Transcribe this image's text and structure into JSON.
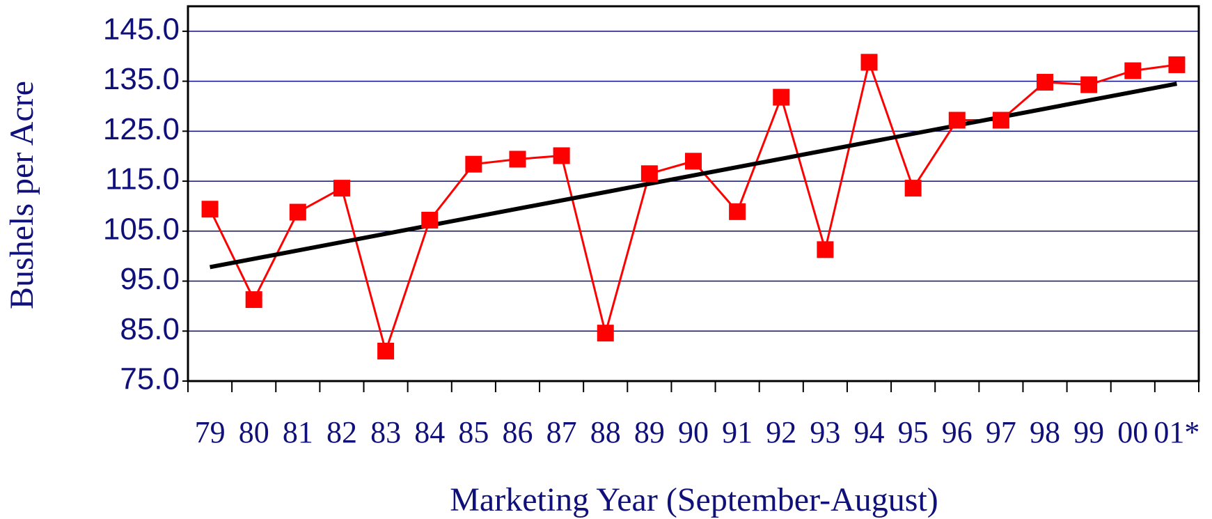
{
  "chart_data": {
    "type": "line",
    "x_label": "Marketing Year (September-August)",
    "y_label": "Bushels per Acre",
    "categories": [
      "79",
      "80",
      "81",
      "82",
      "83",
      "84",
      "85",
      "86",
      "87",
      "88",
      "89",
      "90",
      "91",
      "92",
      "93",
      "94",
      "95",
      "96",
      "97",
      "98",
      "99",
      "00",
      "01*"
    ],
    "series": [
      {
        "color": "#ff0000",
        "values": [
          109.4,
          91.3,
          108.8,
          113.6,
          81.0,
          107.2,
          118.4,
          119.4,
          120.1,
          84.6,
          116.5,
          119.0,
          108.9,
          131.8,
          101.3,
          138.8,
          113.6,
          127.2,
          127.2,
          134.8,
          134.3,
          137.1,
          138.3
        ]
      }
    ],
    "trend": {
      "color": "#000000",
      "start": 97.8,
      "end": 134.5
    },
    "ylim": [
      75,
      150
    ],
    "yticks": [
      {
        "value": 75,
        "label": "75.0"
      },
      {
        "value": 85,
        "label": "85.0"
      },
      {
        "value": 95,
        "label": "95.0"
      },
      {
        "value": 105,
        "label": "105.0"
      },
      {
        "value": 115,
        "label": "115.0"
      },
      {
        "value": 125,
        "label": "125.0"
      },
      {
        "value": 135,
        "label": "135.0"
      },
      {
        "value": 145,
        "label": "145.0"
      }
    ],
    "grid": true,
    "grid_color": "#10107a"
  }
}
